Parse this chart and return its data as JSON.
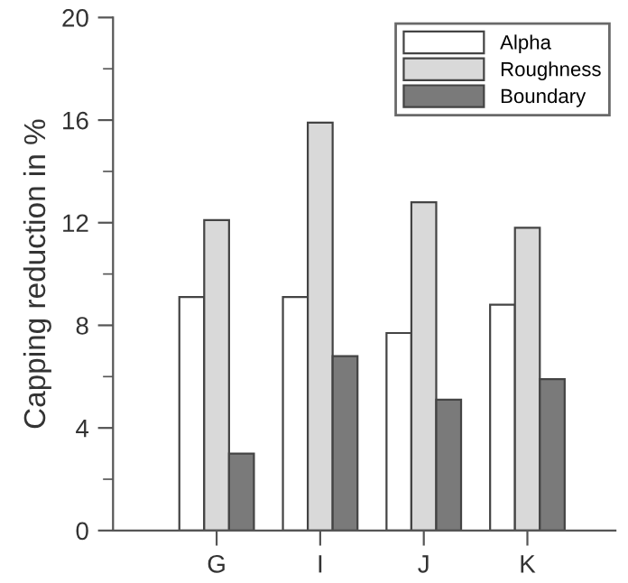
{
  "chart_data": {
    "type": "bar",
    "ylabel": "Capping reduction in %",
    "categories": [
      "G",
      "I",
      "J",
      "K"
    ],
    "series": [
      {
        "name": "Alpha",
        "color": "#ffffff",
        "values": [
          9.1,
          9.1,
          7.7,
          8.8
        ]
      },
      {
        "name": "Roughness",
        "color": "#d9d9d9",
        "values": [
          12.1,
          15.9,
          12.8,
          11.8
        ]
      },
      {
        "name": "Boundary",
        "color": "#7a7a7a",
        "values": [
          3.0,
          6.8,
          5.1,
          5.9
        ]
      }
    ],
    "ylim": [
      0,
      20
    ],
    "yticks": [
      0,
      4,
      8,
      12,
      16,
      20
    ],
    "grid": false,
    "legend": "top right"
  }
}
